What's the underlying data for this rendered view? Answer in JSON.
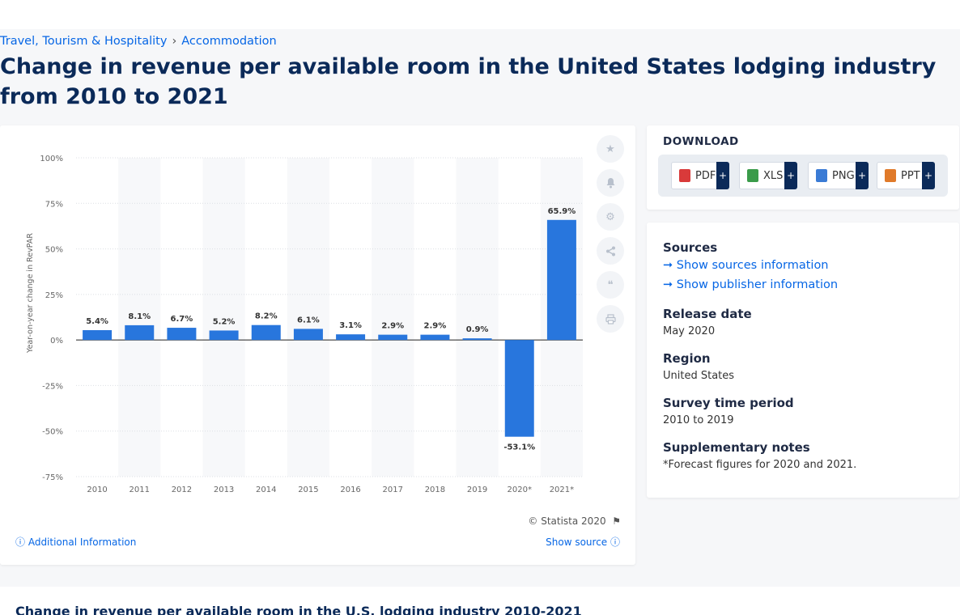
{
  "breadcrumb": {
    "item1": "Travel, Tourism & Hospitality",
    "sep": "›",
    "item2": "Accommodation"
  },
  "page_title": "Change in revenue per available room in the United States lodging industry from 2010 to 2021",
  "chart_data": {
    "type": "bar",
    "categories": [
      "2010",
      "2011",
      "2012",
      "2013",
      "2014",
      "2015",
      "2016",
      "2017",
      "2018",
      "2019",
      "2020*",
      "2021*"
    ],
    "values": [
      5.4,
      8.1,
      6.7,
      5.2,
      8.2,
      6.1,
      3.1,
      2.9,
      2.9,
      0.9,
      -53.1,
      65.9
    ],
    "data_labels": [
      "5.4%",
      "8.1%",
      "6.7%",
      "5.2%",
      "8.2%",
      "6.1%",
      "3.1%",
      "2.9%",
      "2.9%",
      "0.9%",
      "-53.1%",
      "65.9%"
    ],
    "ylabel": "Year-on-year change in RevPAR",
    "yticks": [
      100,
      75,
      50,
      25,
      0,
      -25,
      -50,
      -75
    ],
    "ytick_labels": [
      "100%",
      "75%",
      "50%",
      "25%",
      "0%",
      "-25%",
      "-50%",
      "-75%"
    ],
    "ylim": [
      -75,
      100
    ],
    "grid": true,
    "bar_color": "#2876dd"
  },
  "chart_footer": {
    "copyright": "© Statista 2020",
    "additional_info": "Additional Information",
    "show_source": "Show source"
  },
  "tools": [
    "star-icon",
    "bell-icon",
    "gear-icon",
    "share-icon",
    "quote-icon",
    "print-icon"
  ],
  "download": {
    "title": "DOWNLOAD",
    "buttons": [
      {
        "label": "PDF",
        "color": "#d93a3a"
      },
      {
        "label": "XLS",
        "color": "#3a9b4a"
      },
      {
        "label": "PNG",
        "color": "#3a7bd5"
      },
      {
        "label": "PPT",
        "color": "#e07a2a"
      }
    ],
    "plus": "+"
  },
  "info": {
    "sources_h": "Sources",
    "sources_link": "Show sources information",
    "publisher_link": "Show publisher information",
    "release_h": "Release date",
    "release_v": "May 2020",
    "region_h": "Region",
    "region_v": "United States",
    "survey_h": "Survey time period",
    "survey_v": "2010 to 2019",
    "notes_h": "Supplementary notes",
    "notes_v": "*Forecast figures for 2020 and 2021."
  },
  "bottom": {
    "title": "Change in revenue per available room in the U.S. lodging industry 2010-2021"
  }
}
